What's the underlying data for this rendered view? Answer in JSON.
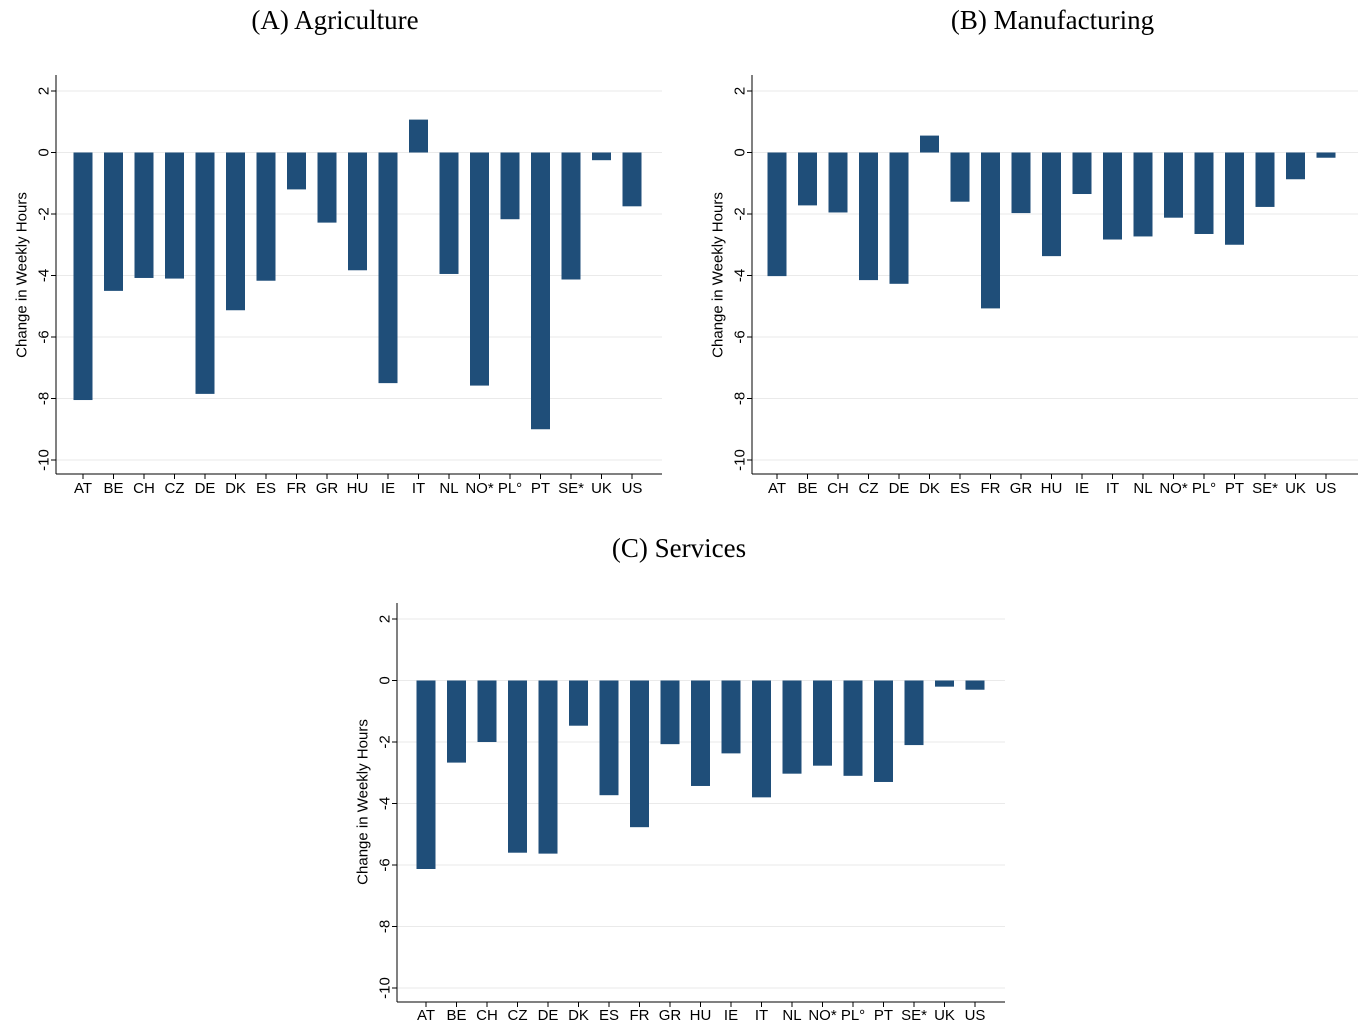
{
  "chart_data": [
    {
      "type": "bar",
      "title": "(A) Agriculture",
      "ylabel": "Change in Weekly Hours",
      "xlabel": "",
      "ylim": [
        -10,
        2
      ],
      "yticks": [
        2,
        0,
        -2,
        -4,
        -6,
        -8,
        -10
      ],
      "ytick_labels": [
        "2",
        "0",
        "-2",
        "-4",
        "-6",
        "-8",
        "-10"
      ],
      "grid": true,
      "bar_color": "#1f4e79",
      "categories": [
        "AT",
        "BE",
        "CH",
        "CZ",
        "DE",
        "DK",
        "ES",
        "FR",
        "GR",
        "HU",
        "IE",
        "IT",
        "NL",
        "NO*",
        "PL°",
        "PT",
        "SE*",
        "UK",
        "US"
      ],
      "values": [
        -8.05,
        -4.5,
        -4.08,
        -4.1,
        -7.85,
        -5.13,
        -4.17,
        -1.2,
        -2.28,
        -3.83,
        -7.5,
        1.07,
        -3.95,
        -7.58,
        -2.17,
        -9.0,
        -4.13,
        -0.25,
        -1.75
      ]
    },
    {
      "type": "bar",
      "title": "(B) Manufacturing",
      "ylabel": "Change in Weekly Hours",
      "xlabel": "",
      "ylim": [
        -10,
        2
      ],
      "yticks": [
        2,
        0,
        -2,
        -4,
        -6,
        -8,
        -10
      ],
      "ytick_labels": [
        "2",
        "0",
        "-2",
        "-4",
        "-6",
        "-8",
        "-10"
      ],
      "grid": true,
      "bar_color": "#1f4e79",
      "categories": [
        "AT",
        "BE",
        "CH",
        "CZ",
        "DE",
        "DK",
        "ES",
        "FR",
        "GR",
        "HU",
        "IE",
        "IT",
        "NL",
        "NO*",
        "PL°",
        "PT",
        "SE*",
        "UK",
        "US"
      ],
      "values": [
        -4.02,
        -1.72,
        -1.95,
        -4.15,
        -4.27,
        0.55,
        -1.6,
        -5.07,
        -1.97,
        -3.37,
        -1.35,
        -2.83,
        -2.73,
        -2.12,
        -2.65,
        -3.0,
        -1.77,
        -0.87,
        -0.17
      ]
    },
    {
      "type": "bar",
      "title": "(C) Services",
      "ylabel": "Change in Weekly Hours",
      "xlabel": "",
      "ylim": [
        -10,
        2
      ],
      "yticks": [
        2,
        0,
        -2,
        -4,
        -6,
        -8,
        -10
      ],
      "ytick_labels": [
        "2",
        "0",
        "-2",
        "-4",
        "-6",
        "-8",
        "-10"
      ],
      "grid": true,
      "bar_color": "#1f4e79",
      "categories": [
        "AT",
        "BE",
        "CH",
        "CZ",
        "DE",
        "DK",
        "ES",
        "FR",
        "GR",
        "HU",
        "IE",
        "IT",
        "NL",
        "NO*",
        "PL°",
        "PT",
        "SE*",
        "UK",
        "US"
      ],
      "values": [
        -6.13,
        -2.67,
        -2.0,
        -5.6,
        -5.63,
        -1.47,
        -3.73,
        -4.77,
        -2.07,
        -3.43,
        -2.37,
        -3.8,
        -3.03,
        -2.77,
        -3.1,
        -3.3,
        -2.1,
        -0.2,
        -0.3
      ]
    }
  ]
}
